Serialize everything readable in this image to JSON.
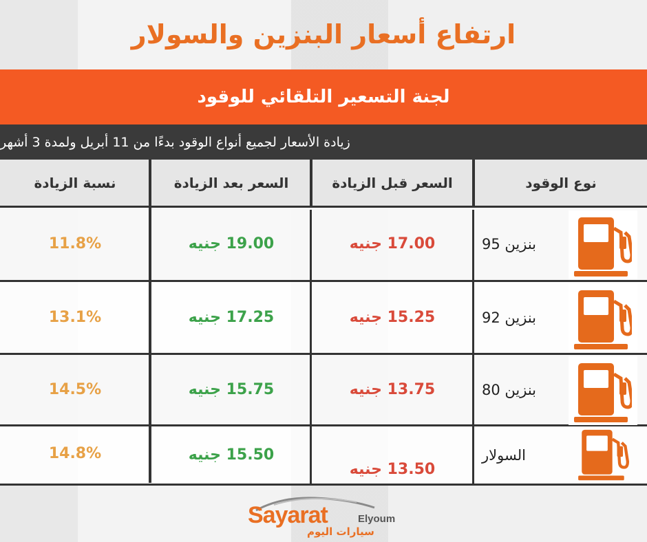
{
  "title": "ارتفاع أسعار البنزين والسولار",
  "subtitle": "لجنة التسعير التلقائي للوقود",
  "note": "زيادة الأسعار لجميع أنواع الوقود بدءًا من 11 أبريل ولمدة 3 أشهر",
  "table": {
    "headers": {
      "fuel_type": "نوع الوقود",
      "price_before": "السعر قبل الزيادة",
      "price_after": "السعر بعد الزيادة",
      "increase_pct": "نسبة الزيادة"
    },
    "rows": [
      {
        "fuel": "بنزين 95",
        "before": "17.00 جنيه",
        "after": "19.00 جنيه",
        "pct": "11.8%",
        "icon": "fuel-pump-icon"
      },
      {
        "fuel": "بنزين 92",
        "before": "15.25 جنيه",
        "after": "17.25 جنيه",
        "pct": "13.1%",
        "icon": "fuel-pump-icon"
      },
      {
        "fuel": "بنزين 80",
        "before": "13.75 جنيه",
        "after": "15.75 جنيه",
        "pct": "14.5%",
        "icon": "fuel-pump-icon"
      },
      {
        "fuel": "السولار",
        "before": "13.50 جنيه",
        "after": "15.50 جنيه",
        "pct": "14.8%",
        "icon": "fuel-pump-icon"
      }
    ]
  },
  "logo": {
    "main": "Sayarat",
    "sub": "Elyoum",
    "arabic": "سيارات اليوم"
  },
  "colors": {
    "accent_orange": "#f45a23",
    "title_orange": "#e96f23",
    "pump_orange": "#e56a1c",
    "price_before_red": "#d94a3a",
    "price_after_green": "#3ca24a",
    "percent_amber": "#e7a146",
    "dark_bar": "#3a3a3a"
  }
}
